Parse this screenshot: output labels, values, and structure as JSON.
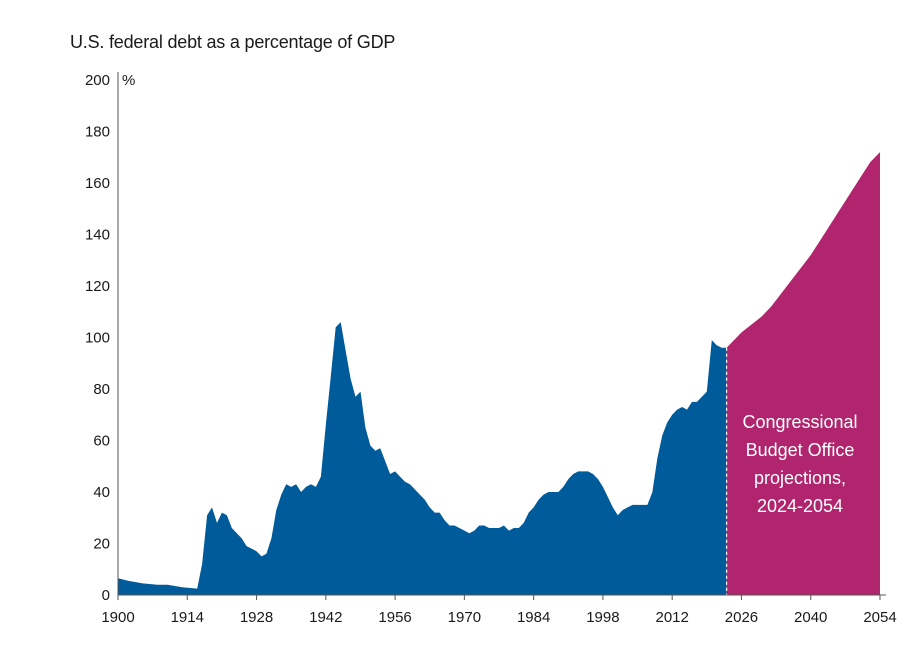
{
  "chart_data": {
    "type": "area",
    "title": "U.S. federal debt as a percentage of GDP",
    "ylabel": "%",
    "xlabel": "",
    "xlim": [
      1900,
      2054
    ],
    "ylim": [
      0,
      200
    ],
    "x_ticks": [
      1900,
      1914,
      1928,
      1942,
      1956,
      1970,
      1984,
      1998,
      2012,
      2026,
      2040,
      2054
    ],
    "y_ticks": [
      0,
      20,
      40,
      60,
      80,
      100,
      120,
      140,
      160,
      180,
      200
    ],
    "grid": false,
    "legend": "none",
    "series": [
      {
        "color": "#005b9a",
        "points": [
          [
            1900,
            6.5
          ],
          [
            1902,
            5.5
          ],
          [
            1905,
            4.5
          ],
          [
            1908,
            4
          ],
          [
            1910,
            4
          ],
          [
            1913,
            3
          ],
          [
            1916,
            2.5
          ],
          [
            1917,
            12
          ],
          [
            1918,
            31
          ],
          [
            1919,
            34
          ],
          [
            1920,
            28
          ],
          [
            1921,
            32
          ],
          [
            1922,
            31
          ],
          [
            1923,
            26
          ],
          [
            1924,
            24
          ],
          [
            1925,
            22
          ],
          [
            1926,
            19
          ],
          [
            1927,
            18
          ],
          [
            1928,
            17
          ],
          [
            1929,
            15
          ],
          [
            1930,
            16
          ],
          [
            1931,
            22
          ],
          [
            1932,
            33
          ],
          [
            1933,
            39
          ],
          [
            1934,
            43
          ],
          [
            1935,
            42
          ],
          [
            1936,
            43
          ],
          [
            1937,
            40
          ],
          [
            1938,
            42
          ],
          [
            1939,
            43
          ],
          [
            1940,
            42
          ],
          [
            1941,
            46
          ],
          [
            1942,
            66
          ],
          [
            1943,
            85
          ],
          [
            1944,
            104
          ],
          [
            1945,
            106
          ],
          [
            1946,
            95
          ],
          [
            1947,
            84
          ],
          [
            1948,
            77
          ],
          [
            1949,
            79
          ],
          [
            1950,
            65
          ],
          [
            1951,
            58
          ],
          [
            1952,
            56
          ],
          [
            1953,
            57
          ],
          [
            1954,
            52
          ],
          [
            1955,
            47
          ],
          [
            1956,
            48
          ],
          [
            1957,
            46
          ],
          [
            1958,
            44
          ],
          [
            1959,
            43
          ],
          [
            1960,
            41
          ],
          [
            1961,
            39
          ],
          [
            1962,
            37
          ],
          [
            1963,
            34
          ],
          [
            1964,
            32
          ],
          [
            1965,
            32
          ],
          [
            1966,
            29
          ],
          [
            1967,
            27
          ],
          [
            1968,
            27
          ],
          [
            1969,
            26
          ],
          [
            1970,
            25
          ],
          [
            1971,
            24
          ],
          [
            1972,
            25
          ],
          [
            1973,
            27
          ],
          [
            1974,
            27
          ],
          [
            1975,
            26
          ],
          [
            1976,
            26
          ],
          [
            1977,
            26
          ],
          [
            1978,
            27
          ],
          [
            1979,
            25
          ],
          [
            1980,
            26
          ],
          [
            1981,
            26
          ],
          [
            1982,
            28
          ],
          [
            1983,
            32
          ],
          [
            1984,
            34
          ],
          [
            1985,
            37
          ],
          [
            1986,
            39
          ],
          [
            1987,
            40
          ],
          [
            1988,
            40
          ],
          [
            1989,
            40
          ],
          [
            1990,
            42
          ],
          [
            1991,
            45
          ],
          [
            1992,
            47
          ],
          [
            1993,
            48
          ],
          [
            1994,
            48
          ],
          [
            1995,
            48
          ],
          [
            1996,
            47
          ],
          [
            1997,
            45
          ],
          [
            1998,
            42
          ],
          [
            1999,
            38
          ],
          [
            2000,
            34
          ],
          [
            2001,
            31
          ],
          [
            2002,
            33
          ],
          [
            2003,
            34
          ],
          [
            2004,
            35
          ],
          [
            2005,
            35
          ],
          [
            2006,
            35
          ],
          [
            2007,
            35
          ],
          [
            2008,
            40
          ],
          [
            2009,
            53
          ],
          [
            2010,
            62
          ],
          [
            2011,
            67
          ],
          [
            2012,
            70
          ],
          [
            2013,
            72
          ],
          [
            2014,
            73
          ],
          [
            2015,
            72
          ],
          [
            2016,
            75
          ],
          [
            2017,
            75
          ],
          [
            2018,
            77
          ],
          [
            2019,
            79
          ],
          [
            2020,
            99
          ],
          [
            2021,
            97
          ],
          [
            2022,
            96
          ],
          [
            2023,
            96
          ]
        ]
      },
      {
        "color": "#b1246e",
        "points": [
          [
            2023,
            96
          ],
          [
            2024,
            98
          ],
          [
            2026,
            102
          ],
          [
            2028,
            105
          ],
          [
            2030,
            108
          ],
          [
            2032,
            112
          ],
          [
            2034,
            117
          ],
          [
            2036,
            122
          ],
          [
            2038,
            127
          ],
          [
            2040,
            132
          ],
          [
            2042,
            138
          ],
          [
            2044,
            144
          ],
          [
            2046,
            150
          ],
          [
            2048,
            156
          ],
          [
            2050,
            162
          ],
          [
            2052,
            168
          ],
          [
            2054,
            172
          ]
        ]
      }
    ],
    "annotation": {
      "lines": [
        "Congressional",
        "Budget Office",
        "projections,",
        "2024-2054"
      ]
    }
  }
}
